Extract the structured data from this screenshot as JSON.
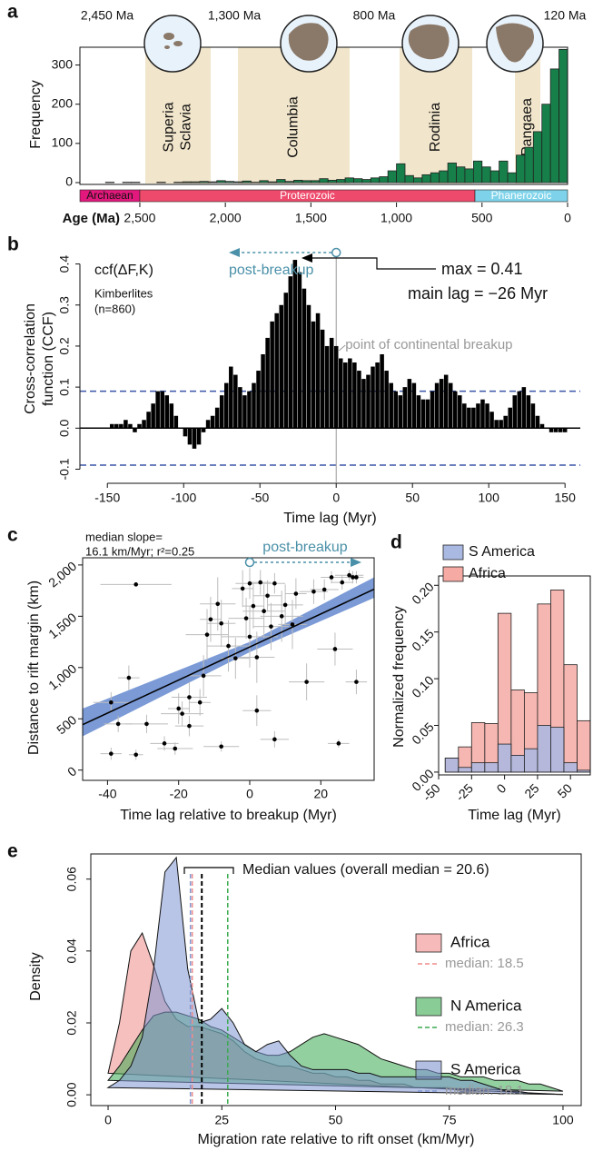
{
  "chart_data": [
    {
      "type": "histogram",
      "panel": "a",
      "ylabel": "Frequency",
      "xlabel": "Age (Ma)",
      "bins": [
        2800,
        2750,
        2700,
        2650,
        2600,
        2550,
        2500,
        2450,
        2400,
        2350,
        2300,
        2250,
        2200,
        2150,
        2100,
        2050,
        2000,
        1950,
        1900,
        1850,
        1800,
        1750,
        1700,
        1650,
        1600,
        1550,
        1500,
        1450,
        1400,
        1350,
        1300,
        1250,
        1200,
        1150,
        1100,
        1050,
        1000,
        950,
        900,
        850,
        800,
        750,
        700,
        650,
        600,
        550,
        500,
        450,
        400,
        350,
        300,
        250,
        200,
        150,
        100,
        50,
        0
      ],
      "values": [
        0,
        0,
        1,
        0,
        1,
        1,
        0,
        0,
        1,
        0,
        1,
        2,
        2,
        3,
        2,
        5,
        3,
        2,
        4,
        1,
        5,
        2,
        8,
        3,
        6,
        5,
        5,
        10,
        6,
        8,
        12,
        10,
        8,
        12,
        15,
        30,
        48,
        18,
        12,
        20,
        25,
        30,
        50,
        40,
        35,
        55,
        40,
        30,
        55,
        25,
        70,
        90,
        130,
        200,
        290,
        340
      ],
      "color": "#17804a",
      "xlim": [
        2850,
        0
      ],
      "ylim": [
        0,
        350
      ],
      "xticks": [
        {
          "value": 2500,
          "label": "2,500"
        },
        {
          "value": 2000,
          "label": "2,000"
        },
        {
          "value": 1500,
          "label": "1,500"
        },
        {
          "value": 1000,
          "label": "1,000"
        },
        500,
        0
      ],
      "yticks": [
        0,
        100,
        200,
        300
      ],
      "eons": [
        {
          "name": "Archaean",
          "color": "#e2187c"
        },
        {
          "name": "Proterozoic",
          "color": "#ee4a6c"
        },
        {
          "name": "Phanerozoic",
          "color": "#7ed3ea"
        }
      ],
      "supercontinents": [
        {
          "names": [
            "Superia",
            "Sclavia"
          ],
          "age": "2,450 Ma"
        },
        {
          "names": [
            "Columbia"
          ],
          "age": "1,300 Ma"
        },
        {
          "names": [
            "Rodinia"
          ],
          "age": "800 Ma"
        },
        {
          "names": [
            "Pangaea"
          ],
          "age": "120 Ma"
        }
      ]
    },
    {
      "type": "bar",
      "panel": "b",
      "ylabel": [
        "Cross-correlation",
        "function (CCF)"
      ],
      "xlabel": "Time lag (Myr)",
      "x": [
        -147,
        -144,
        -141,
        -138,
        -135,
        -132,
        -129,
        -126,
        -123,
        -120,
        -117,
        -114,
        -111,
        -108,
        -105,
        -102,
        -99,
        -96,
        -93,
        -90,
        -87,
        -84,
        -81,
        -78,
        -75,
        -72,
        -69,
        -66,
        -63,
        -60,
        -57,
        -54,
        -51,
        -48,
        -45,
        -42,
        -39,
        -36,
        -33,
        -30,
        -27,
        -24,
        -21,
        -18,
        -15,
        -12,
        -9,
        -6,
        -3,
        0,
        3,
        6,
        9,
        12,
        15,
        18,
        21,
        24,
        27,
        30,
        33,
        36,
        39,
        42,
        45,
        48,
        51,
        54,
        57,
        60,
        63,
        66,
        69,
        72,
        75,
        78,
        81,
        84,
        87,
        90,
        93,
        96,
        99,
        102,
        105,
        108,
        111,
        114,
        117,
        120,
        123,
        126,
        129,
        132,
        135,
        138,
        141,
        144,
        147,
        150
      ],
      "values": [
        0.01,
        0.01,
        0.01,
        0.02,
        0.01,
        -0.01,
        0.01,
        0.02,
        0.04,
        0.06,
        0.09,
        0.09,
        0.08,
        0.06,
        0.03,
        0.0,
        -0.02,
        -0.04,
        -0.05,
        -0.04,
        -0.01,
        0.02,
        0.03,
        0.05,
        0.08,
        0.11,
        0.15,
        0.13,
        0.1,
        0.08,
        0.09,
        0.11,
        0.14,
        0.18,
        0.22,
        0.26,
        0.28,
        0.3,
        0.33,
        0.37,
        0.41,
        0.38,
        0.34,
        0.3,
        0.26,
        0.28,
        0.24,
        0.2,
        0.22,
        0.2,
        0.17,
        0.16,
        0.17,
        0.16,
        0.14,
        0.12,
        0.13,
        0.15,
        0.16,
        0.18,
        0.14,
        0.11,
        0.09,
        0.08,
        0.1,
        0.12,
        0.11,
        0.08,
        0.07,
        0.07,
        0.09,
        0.11,
        0.12,
        0.13,
        0.11,
        0.09,
        0.08,
        0.06,
        0.05,
        0.05,
        0.06,
        0.07,
        0.06,
        0.04,
        0.02,
        0.02,
        0.03,
        0.05,
        0.08,
        0.09,
        0.1,
        0.08,
        0.06,
        0.03,
        0.01,
        0.0,
        -0.01,
        -0.01,
        -0.01,
        -0.01
      ],
      "color": "#000000",
      "xlim": [
        -168,
        160
      ],
      "ylim": [
        -0.11,
        0.45
      ],
      "xticks": [
        -150,
        -100,
        -50,
        0,
        50,
        100,
        150
      ],
      "yticks": [
        -0.1,
        {
          "value": 0,
          "label": "0.0"
        },
        0.1,
        0.2,
        0.3,
        0.4
      ],
      "hlines": [
        0.09,
        -0.09
      ],
      "hline_color": "#3a55a8",
      "annotations": {
        "ccf": "ccf(ΔF,K)",
        "sample": [
          "Kimberlites",
          "(n=860)"
        ],
        "direction": "post-breakup",
        "max": "max = 0.41",
        "lag": "main lag = −26 Myr",
        "breakup": "point of continental breakup"
      }
    },
    {
      "type": "scatter",
      "panel": "c",
      "ylabel": "Distance to rift margin (km)",
      "xlabel": "Time lag relative to breakup (Myr)",
      "x": [
        -32,
        -39,
        -32,
        -37,
        -39,
        -34,
        -29,
        -24,
        -21,
        -20,
        -19,
        -17,
        -17,
        -14,
        -13,
        -12,
        -11,
        -9,
        -8,
        -6,
        -4,
        -2,
        -1,
        0,
        0,
        1,
        2,
        2,
        3,
        4,
        5,
        6,
        7,
        7,
        9,
        10,
        12,
        13,
        16,
        18,
        21,
        23,
        24,
        25,
        26,
        28,
        29,
        30,
        30,
        -8
      ],
      "y": [
        1810,
        160,
        150,
        450,
        660,
        900,
        450,
        260,
        210,
        600,
        550,
        430,
        710,
        660,
        920,
        1320,
        1470,
        1620,
        1430,
        1210,
        1090,
        1770,
        1480,
        1820,
        1300,
        1600,
        1100,
        580,
        1830,
        1550,
        1700,
        1400,
        1820,
        300,
        1500,
        1610,
        1420,
        1720,
        860,
        1740,
        1760,
        1880,
        1180,
        260,
        1830,
        1900,
        1880,
        1880,
        860,
        230
      ],
      "xerr": [
        10,
        3,
        2,
        4,
        5,
        3,
        6,
        4,
        5,
        3,
        6,
        4,
        5,
        3,
        5,
        6,
        3,
        5,
        4,
        6,
        4,
        3,
        5,
        4,
        8,
        3,
        5,
        4,
        3,
        6,
        4,
        5,
        3,
        4,
        6,
        5,
        4,
        3,
        5,
        4,
        4,
        3,
        5,
        3,
        3,
        4,
        3,
        2,
        3,
        5
      ],
      "yerr": [
        0,
        60,
        50,
        80,
        100,
        120,
        90,
        70,
        60,
        150,
        120,
        100,
        150,
        130,
        200,
        250,
        220,
        260,
        230,
        250,
        200,
        180,
        200,
        150,
        300,
        220,
        250,
        150,
        120,
        260,
        150,
        230,
        100,
        80,
        250,
        200,
        240,
        150,
        180,
        120,
        100,
        60,
        160,
        40,
        70,
        50,
        60,
        60,
        120,
        50
      ],
      "color": "#000000",
      "error_color": "#bdbdbd",
      "band_color": "#4f78c8",
      "fit": {
        "x": [
          -47,
          35
        ],
        "y": [
          443,
          1764
        ]
      },
      "band": {
        "x": [
          -47,
          0,
          35
        ],
        "lower": [
          330,
          1150,
          1680
        ],
        "upper": [
          600,
          1250,
          1880
        ]
      },
      "xlim": [
        -47,
        35
      ],
      "ylim": [
        -100,
        2070
      ],
      "xticks": [
        -40,
        -20,
        0,
        20
      ],
      "yticks": [
        0,
        500,
        {
          "value": 1000,
          "label": "1,000"
        },
        {
          "value": 1500,
          "label": "1,500"
        },
        {
          "value": 2000,
          "label": "2,000"
        }
      ],
      "annotations": {
        "slope": [
          "median slope=",
          "16.1 km/Myr; r²=0.25"
        ],
        "direction": "post-breakup"
      }
    },
    {
      "type": "histogram",
      "panel": "d",
      "ylabel": "Normalized frequency",
      "xlabel": "Time lag (Myr)",
      "bins": [
        -45,
        -35,
        -25,
        -15,
        -5,
        5,
        15,
        25,
        35,
        45,
        55,
        65
      ],
      "series": [
        {
          "name": "S America",
          "color": "#a9b9e2",
          "values": [
            0.015,
            0.005,
            0.01,
            0.01,
            0.03,
            0.018,
            0.025,
            0.05,
            0.048,
            0.01,
            0.002
          ]
        },
        {
          "name": "Africa",
          "color": "#f5aaa4",
          "values": [
            0.015,
            0.027,
            0.053,
            0.052,
            0.17,
            0.088,
            0.085,
            0.18,
            0.195,
            0.115,
            0.055
          ]
        }
      ],
      "xlim": [
        -50,
        65
      ],
      "ylim": [
        -0.003,
        0.21
      ],
      "xticks": [
        -50,
        -25,
        0,
        25,
        50
      ],
      "yticks": [
        {
          "value": 0,
          "label": "0.00"
        },
        {
          "value": 0.05,
          "label": "0.05"
        },
        {
          "value": 0.1,
          "label": "0.10"
        },
        {
          "value": 0.15,
          "label": "0.15"
        },
        {
          "value": 0.2,
          "label": "0.20"
        }
      ]
    },
    {
      "type": "density",
      "panel": "e",
      "ylabel": "Density",
      "xlabel": "Migration rate relative to rift onset (km/Myr)",
      "x": [
        0,
        2.5,
        5,
        7.5,
        10,
        12.5,
        15,
        17.5,
        20,
        22.5,
        25,
        27.5,
        30,
        32.5,
        35,
        37.5,
        40,
        42.5,
        45,
        47.5,
        50,
        52.5,
        55,
        57.5,
        60,
        62.5,
        65,
        67.5,
        70,
        72.5,
        75,
        77.5,
        80,
        82.5,
        85,
        87.5,
        90,
        92.5,
        95,
        97.5,
        100
      ],
      "series": [
        {
          "name": "Africa",
          "color": "#ee8c8a",
          "median": 18.5,
          "median_label": "median: 18.5",
          "values": [
            0.006,
            0.02,
            0.04,
            0.045,
            0.036,
            0.026,
            0.021,
            0.019,
            0.019,
            0.018,
            0.017,
            0.015,
            0.012,
            0.01,
            0.009,
            0.008,
            0.008,
            0.007,
            0.006,
            0.006,
            0.005,
            0.005,
            0.004,
            0.004,
            0.003,
            0.003,
            0.003,
            0.002,
            0.002,
            0.002,
            0.002,
            0.001,
            0.001,
            0.001,
            0.001,
            0.001,
            0.0005,
            0.0005,
            0.0003,
            0.0002,
            0.0001
          ]
        },
        {
          "name": "N America",
          "color": "#3aaa50",
          "median": 26.3,
          "median_label": "median: 26.3",
          "values": [
            0.004,
            0.008,
            0.013,
            0.018,
            0.022,
            0.023,
            0.023,
            0.022,
            0.021,
            0.019,
            0.018,
            0.016,
            0.014,
            0.012,
            0.011,
            0.011,
            0.012,
            0.014,
            0.016,
            0.017,
            0.016,
            0.015,
            0.014,
            0.012,
            0.01,
            0.009,
            0.008,
            0.007,
            0.007,
            0.006,
            0.006,
            0.005,
            0.005,
            0.005,
            0.004,
            0.004,
            0.004,
            0.003,
            0.003,
            0.002,
            0.001
          ]
        },
        {
          "name": "S America",
          "color": "#7f95d1",
          "median": 18.1,
          "median_label": "median: 18.1",
          "values": [
            0.002,
            0.004,
            0.008,
            0.016,
            0.035,
            0.062,
            0.066,
            0.035,
            0.02,
            0.021,
            0.024,
            0.02,
            0.014,
            0.012,
            0.014,
            0.015,
            0.011,
            0.008,
            0.007,
            0.007,
            0.007,
            0.007,
            0.006,
            0.006,
            0.005,
            0.005,
            0.005,
            0.005,
            0.005,
            0.005,
            0.005,
            0.004,
            0.004,
            0.003,
            0.002,
            0.001,
            0.001,
            0.0005,
            0.0003,
            0.0002,
            0.0001
          ]
        }
      ],
      "overall_median": 20.6,
      "annotation": "Median values (overall median = 20.6)",
      "xlim": [
        -3.8,
        104
      ],
      "ylim": [
        -0.003,
        0.067
      ],
      "xticks": [
        0,
        25,
        50,
        75,
        100
      ],
      "yticks": [
        {
          "value": 0,
          "label": "0.00"
        },
        {
          "value": 0.02,
          "label": "0.02"
        },
        {
          "value": 0.04,
          "label": "0.04"
        },
        {
          "value": 0.06,
          "label": "0.06"
        }
      ]
    }
  ]
}
